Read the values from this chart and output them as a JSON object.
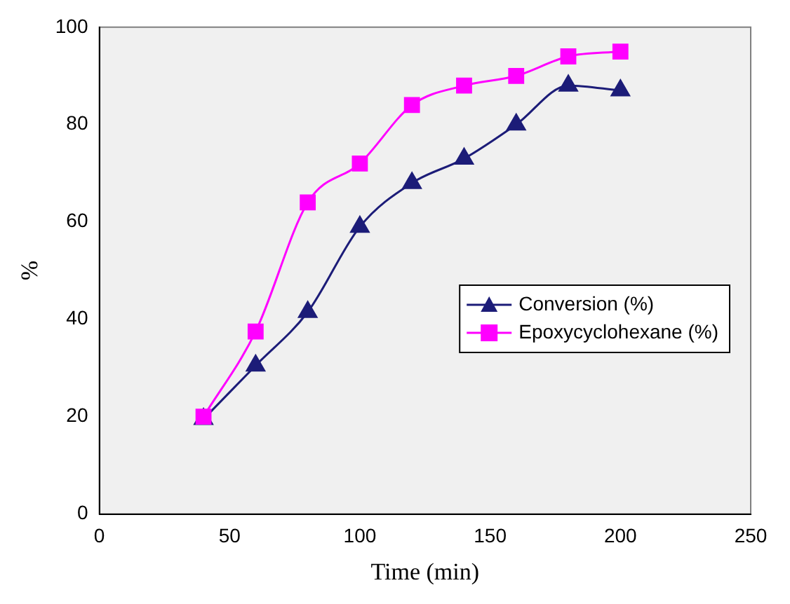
{
  "chart_data": {
    "type": "line",
    "xlabel": "Time (min)",
    "ylabel": "%",
    "x": [
      40,
      60,
      80,
      100,
      120,
      140,
      160,
      180,
      200
    ],
    "series": [
      {
        "name": "Conversion (%)",
        "color": "#1c1c78",
        "marker": "triangle",
        "values": [
          19.5,
          30.5,
          41.5,
          59,
          68,
          73,
          80,
          88,
          87
        ]
      },
      {
        "name": "Epoxycyclohexane (%)",
        "color": "#ff00ff",
        "marker": "square",
        "values": [
          20,
          37.5,
          64,
          72,
          84,
          88,
          90,
          94,
          95
        ]
      }
    ],
    "xlim": [
      0,
      250
    ],
    "xticks": [
      0,
      50,
      100,
      150,
      200,
      250
    ],
    "ylim": [
      0,
      100
    ],
    "yticks": [
      0,
      20,
      40,
      60,
      80,
      100
    ],
    "grid": false,
    "legend": "right"
  }
}
